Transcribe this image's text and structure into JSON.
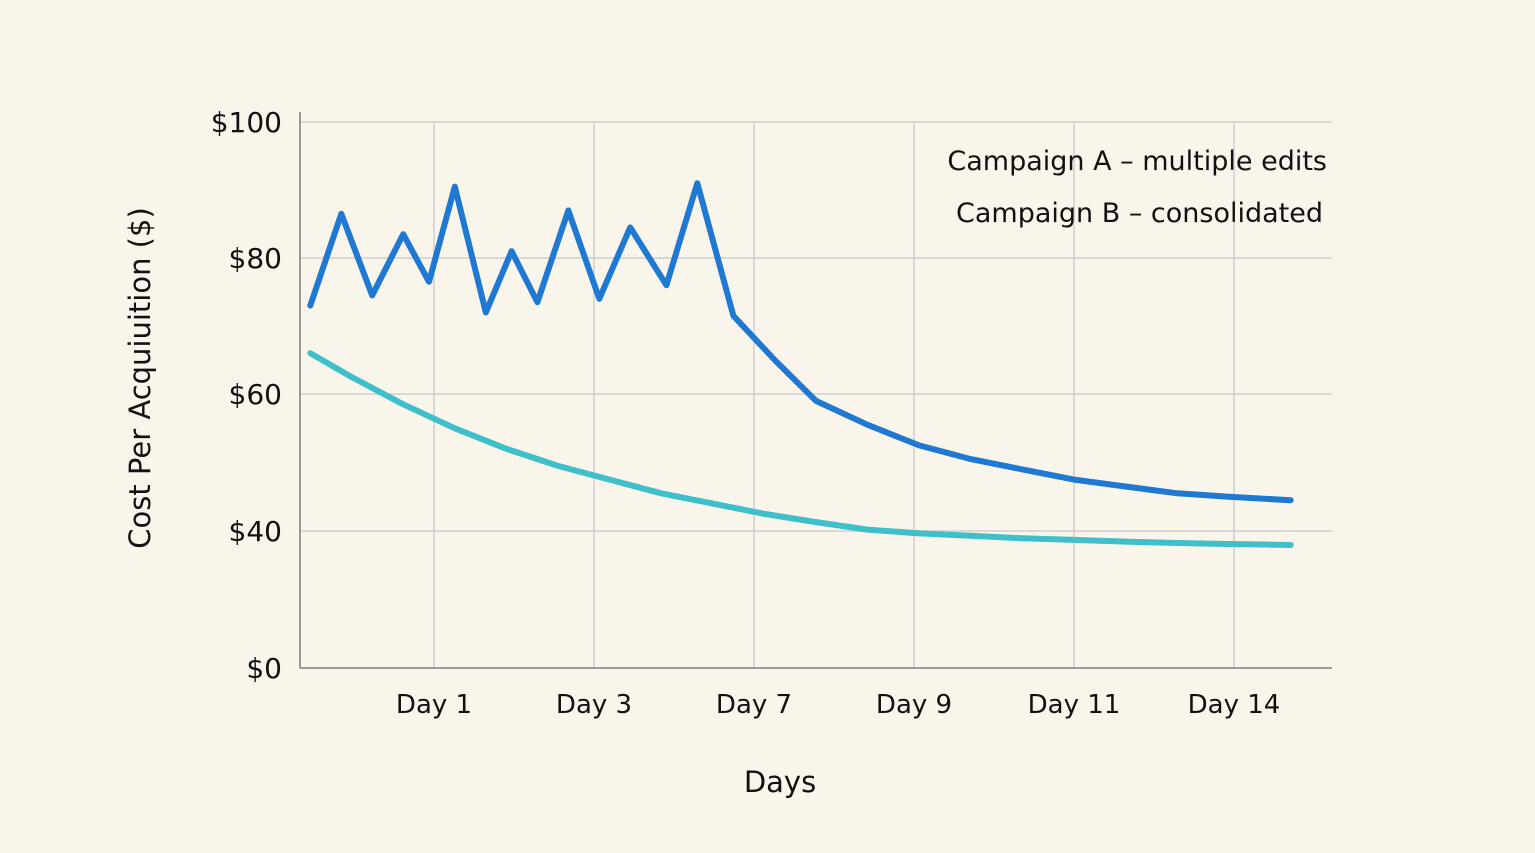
{
  "chart_data": {
    "type": "line",
    "xlabel": "Days",
    "ylabel": "Cost Per Acquiuition ($)",
    "y_tick_labels": [
      "$0",
      "$40",
      "$60",
      "$80",
      "$100"
    ],
    "x_tick_labels": [
      "Day 1",
      "Day 3",
      "Day 7",
      "Day 9",
      "Day 11",
      "Day 14"
    ],
    "grid": true,
    "legend_position": "top-right",
    "series": [
      {
        "name": "Campaign A – multiple edits",
        "color": "#1f78d1",
        "points": [
          {
            "x": 0.1,
            "y": 73
          },
          {
            "x": 0.4,
            "y": 86.5
          },
          {
            "x": 0.7,
            "y": 74.5
          },
          {
            "x": 1.0,
            "y": 83.5
          },
          {
            "x": 1.25,
            "y": 76.5
          },
          {
            "x": 1.5,
            "y": 90.5
          },
          {
            "x": 1.8,
            "y": 72
          },
          {
            "x": 2.05,
            "y": 81
          },
          {
            "x": 2.3,
            "y": 73.5
          },
          {
            "x": 2.6,
            "y": 87
          },
          {
            "x": 2.9,
            "y": 74
          },
          {
            "x": 3.2,
            "y": 84.5
          },
          {
            "x": 3.55,
            "y": 76
          },
          {
            "x": 3.85,
            "y": 91
          },
          {
            "x": 4.2,
            "y": 71.5
          },
          {
            "x": 4.6,
            "y": 65
          },
          {
            "x": 5.0,
            "y": 59
          },
          {
            "x": 5.5,
            "y": 55.5
          },
          {
            "x": 6.0,
            "y": 52.5
          },
          {
            "x": 6.5,
            "y": 50.5
          },
          {
            "x": 7.0,
            "y": 49
          },
          {
            "x": 7.5,
            "y": 47.5
          },
          {
            "x": 8.0,
            "y": 46.5
          },
          {
            "x": 8.5,
            "y": 45.5
          },
          {
            "x": 9.0,
            "y": 45
          },
          {
            "x": 9.6,
            "y": 44.5
          }
        ]
      },
      {
        "name": "Campaign B – consolidated",
        "color": "#3ebfc9",
        "points": [
          {
            "x": 0.1,
            "y": 66
          },
          {
            "x": 0.5,
            "y": 62.5
          },
          {
            "x": 1.0,
            "y": 58.5
          },
          {
            "x": 1.5,
            "y": 55
          },
          {
            "x": 2.0,
            "y": 52
          },
          {
            "x": 2.5,
            "y": 49.5
          },
          {
            "x": 3.0,
            "y": 47.5
          },
          {
            "x": 3.5,
            "y": 45.5
          },
          {
            "x": 4.0,
            "y": 44
          },
          {
            "x": 4.5,
            "y": 42.5
          },
          {
            "x": 5.0,
            "y": 41.3
          },
          {
            "x": 5.5,
            "y": 40.2
          },
          {
            "x": 6.0,
            "y": 39.3
          },
          {
            "x": 6.5,
            "y": 38.6
          },
          {
            "x": 7.0,
            "y": 37.9
          },
          {
            "x": 7.5,
            "y": 37.4
          },
          {
            "x": 8.0,
            "y": 36.9
          },
          {
            "x": 8.5,
            "y": 36.5
          },
          {
            "x": 9.0,
            "y": 36.2
          },
          {
            "x": 9.6,
            "y": 35.9
          }
        ]
      }
    ]
  }
}
